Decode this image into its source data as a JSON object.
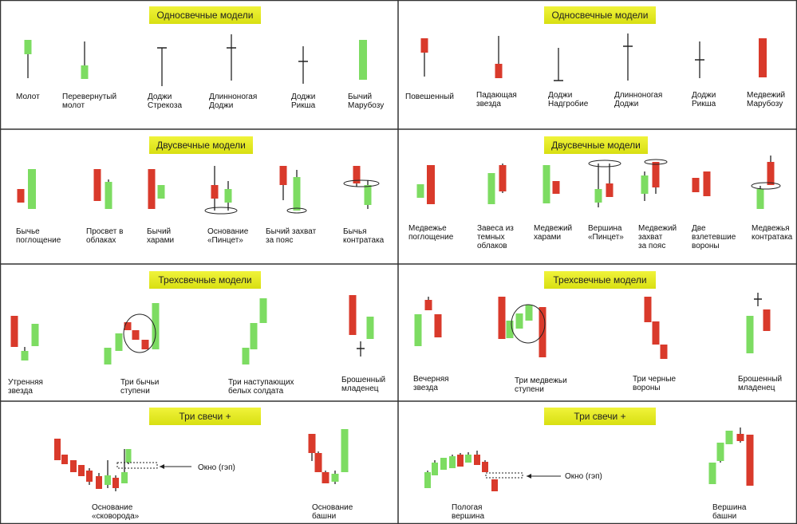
{
  "colors": {
    "bull": "#7ddc62",
    "bear": "#d93a2b",
    "wick": "#222222",
    "title_bg": "#e6eb1c",
    "border": "#333333"
  },
  "panels": [
    {
      "title": "Односвечные модели",
      "labels": [
        "Молот",
        "Перевернутый\nмолот",
        "Доджи\nСтрекоза",
        "Длинноногая\nДоджи",
        "Доджи\nРикша",
        "Бычий\nМарубозу"
      ]
    },
    {
      "title": "Односвечные модели",
      "labels": [
        "Повешенный",
        "Падающая\nзвезда",
        "Доджи\nНадгробие",
        "Длинноногая\nДоджи",
        "Доджи\nРикша",
        "Медвежий\nМарубозу"
      ]
    },
    {
      "title": "Двусвечные модели",
      "labels": [
        "Бычье\nпоглощение",
        "Просвет в\nоблаках",
        "Бычий\nхарами",
        "Основание\n«Пинцет»",
        "Бычий захват\nза пояс",
        "Бычья\nконтратака"
      ]
    },
    {
      "title": "Двусвечные модели",
      "labels": [
        "Медвежье\nпоглощение",
        "Завеса из\nтемных\nоблаков",
        "Медвежий\nхарами",
        "Вершина\n«Пинцет»",
        "Медвежий\nзахват\nза пояс",
        "Две\nвзлетевшие\nвороны",
        "Медвежья\nконтратака"
      ]
    },
    {
      "title": "Трехсвечные модели",
      "labels": [
        "Утренняя\nзвезда",
        "Три бычьи\nступени",
        "Три наступающих\nбелых солдата",
        "Брошенный\nмладенец"
      ]
    },
    {
      "title": "Трехсвечные модели",
      "labels": [
        "Вечерняя\nзвезда",
        "Три медвежьи\nступени",
        "Три черные\nвороны",
        "Брошенный\nмладенец"
      ]
    },
    {
      "title": "Три свечи +",
      "labels": [
        "Основание\n«сковорода»",
        "Основание\nбашни"
      ],
      "gap_label": "Окно (гэп)"
    },
    {
      "title": "Три свечи +",
      "labels": [
        "Пологая\nвершина",
        "Вершина\nбашни"
      ],
      "gap_label": "Окно (гэп)"
    }
  ]
}
